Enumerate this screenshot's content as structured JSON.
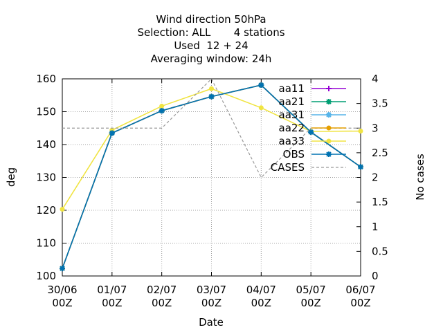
{
  "chart_data": {
    "type": "line",
    "title": [
      "Wind direction 50hPa",
      "Selection: ALL       4 stations",
      "Used  12 + 24",
      "Averaging window: 24h"
    ],
    "xlabel": "Date",
    "ylabel": "deg",
    "y2label": "No cases",
    "x_tick_labels": [
      [
        "30/06",
        "00Z"
      ],
      [
        "01/07",
        "00Z"
      ],
      [
        "02/07",
        "00Z"
      ],
      [
        "03/07",
        "00Z"
      ],
      [
        "04/07",
        "00Z"
      ],
      [
        "05/07",
        "00Z"
      ],
      [
        "06/07",
        "00Z"
      ]
    ],
    "ylim": [
      100,
      160
    ],
    "yticks": [
      "100",
      "110",
      "120",
      "130",
      "140",
      "150",
      "160"
    ],
    "y2lim": [
      0,
      4
    ],
    "y2ticks": [
      "0",
      "0.5",
      "1",
      "1.5",
      "2",
      "2.5",
      "3",
      "3.5",
      "4"
    ],
    "grid": true,
    "legend_position": "top-right",
    "series": [
      {
        "name": "aa11",
        "color": "#9400d3",
        "marker": "plus",
        "values": [
          102.3,
          143.5,
          150.3,
          154.6,
          158.1,
          143.8,
          133.2
        ]
      },
      {
        "name": "aa21",
        "color": "#009e73",
        "marker": "star",
        "values": [
          102.3,
          143.5,
          150.3,
          154.6,
          158.1,
          143.8,
          133.2
        ]
      },
      {
        "name": "aa31",
        "color": "#56b4e9",
        "marker": "star",
        "values": [
          102.3,
          143.5,
          150.3,
          154.6,
          158.1,
          143.8,
          133.2
        ]
      },
      {
        "name": "aa22",
        "color": "#e69f00",
        "marker": "circle",
        "values": [
          102.3,
          143.5,
          150.3,
          154.6,
          158.1,
          143.8,
          133.2
        ]
      },
      {
        "name": "aa33",
        "color": "#f0e442",
        "marker": "circle",
        "values": [
          120.3,
          144.4,
          151.7,
          157.0,
          151.2,
          144.0,
          144.1
        ]
      },
      {
        "name": "OBS",
        "color": "#0072b2",
        "marker": "star",
        "values": [
          102.3,
          143.5,
          150.3,
          154.6,
          158.1,
          143.8,
          133.2
        ]
      },
      {
        "name": "CASES",
        "color": "#999999",
        "marker": "none",
        "dashed": true,
        "axis": "y2",
        "values": [
          3,
          3,
          3,
          4,
          2,
          3,
          3
        ]
      }
    ]
  }
}
